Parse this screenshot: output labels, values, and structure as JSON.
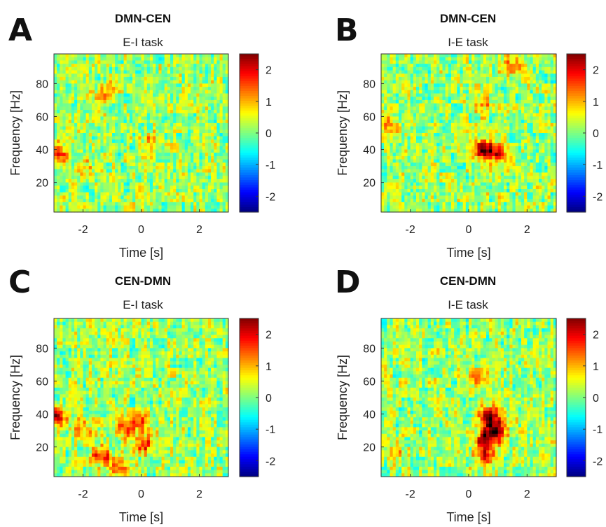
{
  "chart_data": [
    {
      "panel": "A",
      "type": "heatmap",
      "title": "DMN-CEN",
      "subtitle": "E-I task",
      "xlabel": "Time [s]",
      "ylabel": "Frequency [Hz]",
      "xlim": [
        -3,
        3
      ],
      "ylim": [
        2,
        98
      ],
      "xticks": [
        -2,
        0,
        2
      ],
      "yticks": [
        20,
        40,
        60,
        80
      ],
      "colorbar": {
        "colormap": "jet",
        "clim": [
          -2.5,
          2.5
        ],
        "ticks": [
          -2,
          -1,
          0,
          1,
          2
        ]
      },
      "hotspots": [
        {
          "t": -2.9,
          "f": 38,
          "value": 1.8
        },
        {
          "t": -2.0,
          "f": 28,
          "value": 0.9
        },
        {
          "t": -1.2,
          "f": 74,
          "value": 0.9
        },
        {
          "t": 0.3,
          "f": 44,
          "value": 0.8
        }
      ]
    },
    {
      "panel": "B",
      "type": "heatmap",
      "title": "DMN-CEN",
      "subtitle": "I-E task",
      "xlabel": "Time [s]",
      "ylabel": "Frequency [Hz]",
      "xlim": [
        -3,
        3
      ],
      "ylim": [
        2,
        98
      ],
      "xticks": [
        -2,
        0,
        2
      ],
      "yticks": [
        20,
        40,
        60,
        80
      ],
      "colorbar": {
        "colormap": "jet",
        "clim": [
          -2.5,
          2.5
        ],
        "ticks": [
          -2,
          -1,
          0,
          1,
          2
        ]
      },
      "hotspots": [
        {
          "t": 0.5,
          "f": 40,
          "value": 2.3
        },
        {
          "t": 1.0,
          "f": 38,
          "value": 1.9
        },
        {
          "t": 0.5,
          "f": 68,
          "value": 1.0
        },
        {
          "t": 1.5,
          "f": 92,
          "value": 1.0
        },
        {
          "t": -2.8,
          "f": 55,
          "value": 1.0
        }
      ]
    },
    {
      "panel": "C",
      "type": "heatmap",
      "title": "CEN-DMN",
      "subtitle": "E-I task",
      "xlabel": "Time [s]",
      "ylabel": "Frequency [Hz]",
      "xlim": [
        -3,
        3
      ],
      "ylim": [
        2,
        98
      ],
      "xticks": [
        -2,
        0,
        2
      ],
      "yticks": [
        20,
        40,
        60,
        80
      ],
      "colorbar": {
        "colormap": "jet",
        "clim": [
          -2.5,
          2.5
        ],
        "ticks": [
          -2,
          -1,
          0,
          1,
          2
        ]
      },
      "hotspots": [
        {
          "t": -2.9,
          "f": 38,
          "value": 2.0
        },
        {
          "t": -1.4,
          "f": 15,
          "value": 1.6
        },
        {
          "t": -0.8,
          "f": 8,
          "value": 1.3
        },
        {
          "t": 0.1,
          "f": 22,
          "value": 1.6
        },
        {
          "t": 0.0,
          "f": 35,
          "value": 1.2
        },
        {
          "t": -0.6,
          "f": 32,
          "value": 1.2
        },
        {
          "t": -2.0,
          "f": 30,
          "value": 1.0
        }
      ]
    },
    {
      "panel": "D",
      "type": "heatmap",
      "title": "CEN-DMN",
      "subtitle": "I-E task",
      "xlabel": "Time [s]",
      "ylabel": "Frequency [Hz]",
      "xlim": [
        -3,
        3
      ],
      "ylim": [
        2,
        98
      ],
      "xticks": [
        -2,
        0,
        2
      ],
      "yticks": [
        20,
        40,
        60,
        80
      ],
      "colorbar": {
        "colormap": "jet",
        "clim": [
          -2.5,
          2.5
        ],
        "ticks": [
          -2,
          -1,
          0,
          1,
          2
        ]
      },
      "hotspots": [
        {
          "t": 0.7,
          "f": 38,
          "value": 2.5
        },
        {
          "t": 0.6,
          "f": 25,
          "value": 2.3
        },
        {
          "t": 1.0,
          "f": 30,
          "value": 2.0
        },
        {
          "t": 0.6,
          "f": 15,
          "value": 1.8
        },
        {
          "t": 0.4,
          "f": 63,
          "value": 1.0
        },
        {
          "t": -2.5,
          "f": 18,
          "value": 0.8
        }
      ]
    }
  ]
}
